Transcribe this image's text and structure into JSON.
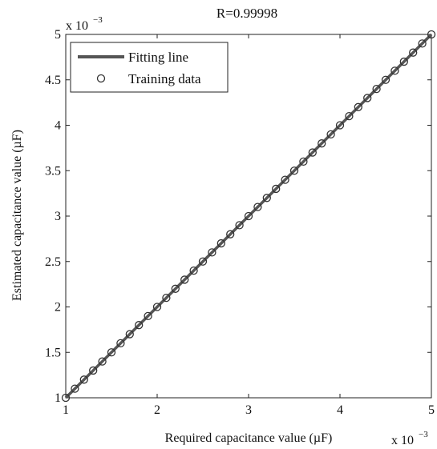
{
  "chart_data": {
    "type": "scatter",
    "title": "R=0.99998",
    "xlabel": "Required capacitance value (µF)",
    "ylabel": "Estimated capacitance value (µF)",
    "xlim": [
      1,
      5
    ],
    "ylim": [
      1,
      5
    ],
    "x_scale_label": "x 10",
    "x_scale_exponent": "−3",
    "y_scale_label": "x 10",
    "y_scale_exponent": "−3",
    "xticks": [
      "1",
      "2",
      "3",
      "4",
      "5"
    ],
    "yticks": [
      "1",
      "1.5",
      "2",
      "2.5",
      "3",
      "3.5",
      "4",
      "4.5",
      "5"
    ],
    "legend_position": "top-left",
    "grid": false,
    "series": [
      {
        "name": "Fitting line",
        "kind": "line",
        "color": "#555555",
        "x": [
          1,
          5
        ],
        "y": [
          1,
          5
        ]
      },
      {
        "name": "Training data",
        "kind": "scatter",
        "marker": "circle",
        "color": "#333333",
        "x": [
          1.0,
          1.1,
          1.2,
          1.3,
          1.4,
          1.5,
          1.6,
          1.7,
          1.8,
          1.9,
          2.0,
          2.1,
          2.2,
          2.3,
          2.4,
          2.5,
          2.6,
          2.7,
          2.8,
          2.9,
          3.0,
          3.1,
          3.2,
          3.3,
          3.4,
          3.5,
          3.6,
          3.7,
          3.8,
          3.9,
          4.0,
          4.1,
          4.2,
          4.3,
          4.4,
          4.5,
          4.6,
          4.7,
          4.8,
          4.9,
          5.0
        ],
        "y": [
          1.0,
          1.1,
          1.2,
          1.3,
          1.4,
          1.5,
          1.6,
          1.7,
          1.8,
          1.9,
          2.0,
          2.1,
          2.2,
          2.3,
          2.4,
          2.5,
          2.6,
          2.7,
          2.8,
          2.9,
          3.0,
          3.1,
          3.2,
          3.3,
          3.4,
          3.5,
          3.6,
          3.7,
          3.8,
          3.9,
          4.0,
          4.1,
          4.2,
          4.3,
          4.4,
          4.5,
          4.6,
          4.7,
          4.8,
          4.9,
          5.0
        ]
      }
    ]
  }
}
